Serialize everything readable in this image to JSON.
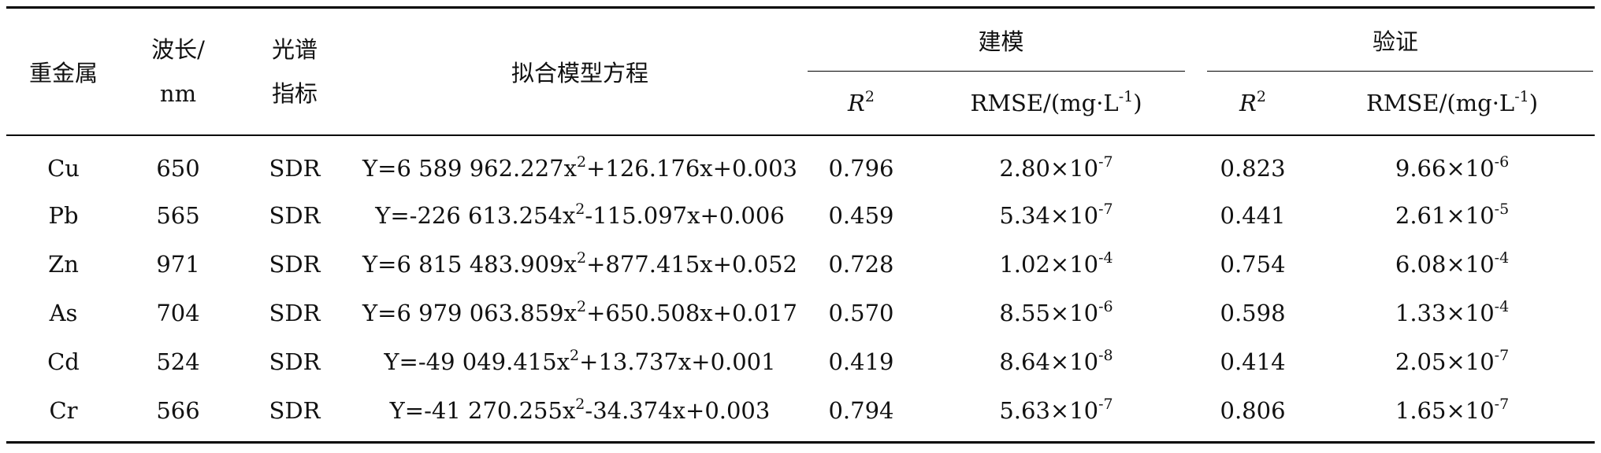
{
  "header": {
    "metal": "重金属",
    "wavelength_l1": "波长/",
    "wavelength_l2": "nm",
    "index_l1": "光谱",
    "index_l2": "指标",
    "equation": "拟合模型方程",
    "modeling": "建模",
    "validation": "验证",
    "r2_base": "R",
    "r2_exp": "2",
    "rmse": "RMSE/(mg·L",
    "rmse_exp": "-1",
    "rmse_close": ")"
  },
  "rows": [
    {
      "metal": "Cu",
      "wavelength": "650",
      "index": "SDR",
      "eq_pre": "Y=6 589 962.227x",
      "eq_post": "+126.176x+0.003",
      "m_r2": "0.796",
      "m_rmse_base": "2.80×10",
      "m_rmse_exp": "-7",
      "v_r2": "0.823",
      "v_rmse_base": "9.66×10",
      "v_rmse_exp": "-6"
    },
    {
      "metal": "Pb",
      "wavelength": "565",
      "index": "SDR",
      "eq_pre": "Y=-226 613.254x",
      "eq_post": "-115.097x+0.006",
      "m_r2": "0.459",
      "m_rmse_base": "5.34×10",
      "m_rmse_exp": "-7",
      "v_r2": "0.441",
      "v_rmse_base": "2.61×10",
      "v_rmse_exp": "-5"
    },
    {
      "metal": "Zn",
      "wavelength": "971",
      "index": "SDR",
      "eq_pre": "Y=6 815 483.909x",
      "eq_post": "+877.415x+0.052",
      "m_r2": "0.728",
      "m_rmse_base": "1.02×10",
      "m_rmse_exp": "-4",
      "v_r2": "0.754",
      "v_rmse_base": "6.08×10",
      "v_rmse_exp": "-4"
    },
    {
      "metal": "As",
      "wavelength": "704",
      "index": "SDR",
      "eq_pre": "Y=6 979 063.859x",
      "eq_post": "+650.508x+0.017",
      "m_r2": "0.570",
      "m_rmse_base": "8.55×10",
      "m_rmse_exp": "-6",
      "v_r2": "0.598",
      "v_rmse_base": "1.33×10",
      "v_rmse_exp": "-4"
    },
    {
      "metal": "Cd",
      "wavelength": "524",
      "index": "SDR",
      "eq_pre": "Y=-49 049.415x",
      "eq_post": "+13.737x+0.001",
      "m_r2": "0.419",
      "m_rmse_base": "8.64×10",
      "m_rmse_exp": "-8",
      "v_r2": "0.414",
      "v_rmse_base": "2.05×10",
      "v_rmse_exp": "-7"
    },
    {
      "metal": "Cr",
      "wavelength": "566",
      "index": "SDR",
      "eq_pre": "Y=-41 270.255x",
      "eq_post": "-34.374x+0.003",
      "m_r2": "0.794",
      "m_rmse_base": "5.63×10",
      "m_rmse_exp": "-7",
      "v_r2": "0.806",
      "v_rmse_base": "1.65×10",
      "v_rmse_exp": "-7"
    }
  ],
  "eq_exp": "2"
}
